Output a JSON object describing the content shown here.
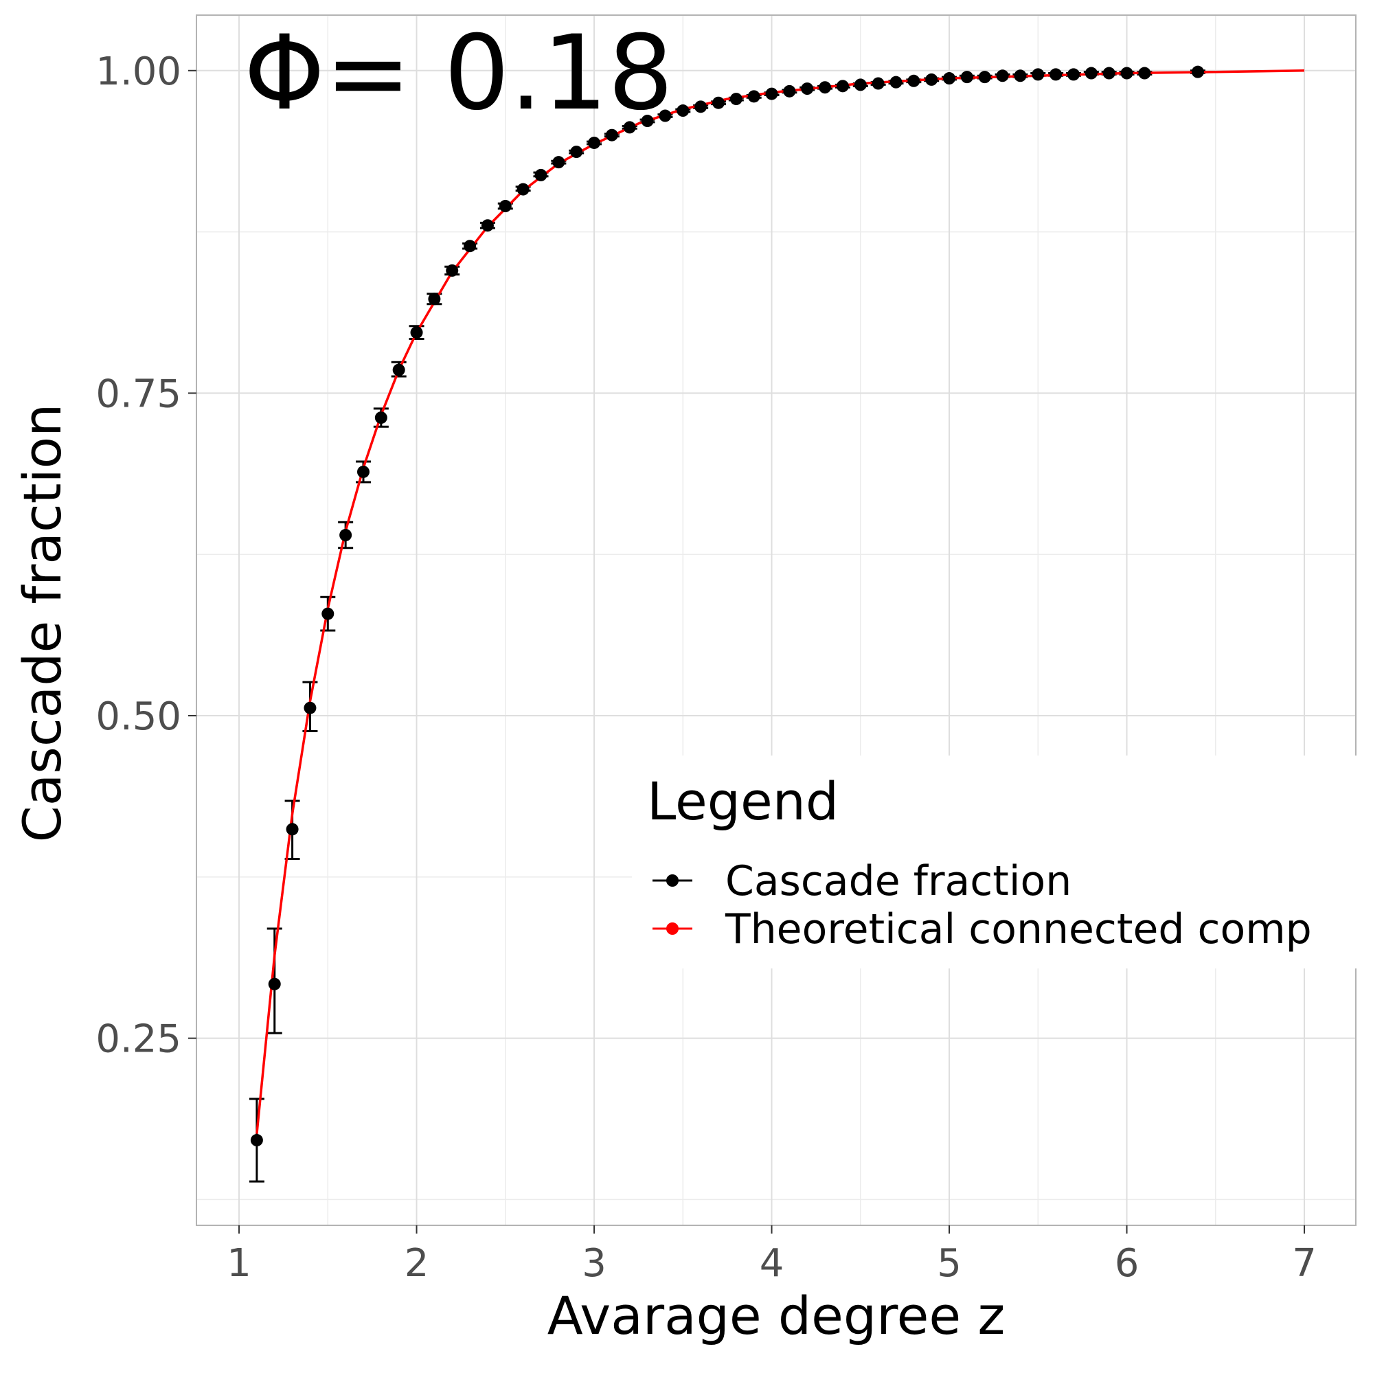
{
  "chart_data": {
    "type": "scatter",
    "title": "",
    "xlabel": "Avarage degree z",
    "ylabel": "Cascade fraction",
    "annotation": "Φ= 0.18",
    "xlim": [
      0.76,
      7.29
    ],
    "ylim": [
      0.105,
      1.043
    ],
    "x_ticks": [
      1,
      2,
      3,
      4,
      5,
      6,
      7
    ],
    "x_tick_labels": [
      "1",
      "2",
      "3",
      "4",
      "5",
      "6",
      "7"
    ],
    "y_ticks": [
      0.25,
      0.5,
      0.75,
      1.0
    ],
    "y_tick_labels": [
      "0.25",
      "0.50",
      "0.75",
      "1.00"
    ],
    "grid": true,
    "legend": {
      "title": "Legend",
      "position": "right",
      "entries": [
        "Cascade fraction",
        "Theoretical connected comp"
      ]
    },
    "colors": {
      "observed": "#000000",
      "theory": "#ff0000"
    },
    "series": [
      {
        "name": "Cascade fraction",
        "x": [
          1.1,
          1.2,
          1.3,
          1.4,
          1.5,
          1.6,
          1.7,
          1.8,
          1.9,
          2.0,
          2.1,
          2.2,
          2.3,
          2.4,
          2.5,
          2.6,
          2.7,
          2.8,
          2.9,
          3.0,
          3.1,
          3.2,
          3.3,
          3.4,
          3.5,
          3.6,
          3.7,
          3.8,
          3.9,
          4.0,
          4.1,
          4.2,
          4.3,
          4.4,
          4.5,
          4.6,
          4.7,
          4.8,
          4.9,
          5.0,
          5.1,
          5.2,
          5.3,
          5.4,
          5.5,
          5.6,
          5.7,
          5.8,
          5.9,
          6.0,
          6.1,
          6.4
        ],
        "y": [
          0.171,
          0.292,
          0.412,
          0.506,
          0.579,
          0.64,
          0.689,
          0.731,
          0.768,
          0.797,
          0.823,
          0.845,
          0.864,
          0.88,
          0.895,
          0.908,
          0.919,
          0.929,
          0.937,
          0.944,
          0.95,
          0.956,
          0.961,
          0.965,
          0.969,
          0.972,
          0.975,
          0.978,
          0.98,
          0.982,
          0.984,
          0.986,
          0.987,
          0.988,
          0.989,
          0.99,
          0.991,
          0.992,
          0.993,
          0.994,
          0.995,
          0.995,
          0.996,
          0.996,
          0.997,
          0.997,
          0.997,
          0.998,
          0.998,
          0.998,
          0.998,
          0.999
        ],
        "err_low": [
          0.139,
          0.254,
          0.389,
          0.488,
          0.566,
          0.63,
          0.681,
          0.724,
          0.763,
          0.792,
          0.819,
          0.842,
          0.862,
          0.878,
          0.893,
          0.907,
          0.918,
          0.928,
          0.936,
          0.943,
          0.949,
          0.955,
          0.96,
          0.964,
          0.968,
          0.971,
          0.974,
          0.977,
          0.979,
          0.981,
          0.983,
          0.985,
          0.986,
          0.987,
          0.988,
          0.989,
          0.99,
          0.991,
          0.992,
          0.993,
          0.994,
          0.994,
          0.995,
          0.995,
          0.996,
          0.996,
          0.996,
          0.997,
          0.997,
          0.997,
          0.997,
          0.998
        ],
        "err_high": [
          0.203,
          0.335,
          0.434,
          0.526,
          0.592,
          0.65,
          0.697,
          0.738,
          0.774,
          0.802,
          0.827,
          0.848,
          0.866,
          0.882,
          0.897,
          0.91,
          0.921,
          0.93,
          0.938,
          0.945,
          0.951,
          0.957,
          0.962,
          0.966,
          0.97,
          0.973,
          0.976,
          0.979,
          0.981,
          0.983,
          0.985,
          0.987,
          0.988,
          0.989,
          0.99,
          0.991,
          0.992,
          0.993,
          0.994,
          0.995,
          0.996,
          0.996,
          0.997,
          0.997,
          0.998,
          0.998,
          0.998,
          0.999,
          0.999,
          0.999,
          0.999,
          1.0
        ]
      },
      {
        "name": "Theoretical connected comp",
        "x": [
          1.1,
          1.2,
          1.3,
          1.4,
          1.5,
          1.6,
          1.7,
          1.8,
          1.9,
          2.0,
          2.2,
          2.4,
          2.6,
          2.8,
          3.0,
          3.25,
          3.5,
          3.75,
          4.0,
          4.5,
          5.0,
          5.5,
          6.0,
          6.5,
          7.0
        ],
        "y": [
          0.176,
          0.314,
          0.424,
          0.511,
          0.583,
          0.643,
          0.692,
          0.733,
          0.768,
          0.797,
          0.844,
          0.879,
          0.907,
          0.928,
          0.943,
          0.959,
          0.97,
          0.978,
          0.983,
          0.99,
          0.994,
          0.996,
          0.998,
          0.999,
          1.0
        ]
      }
    ]
  }
}
